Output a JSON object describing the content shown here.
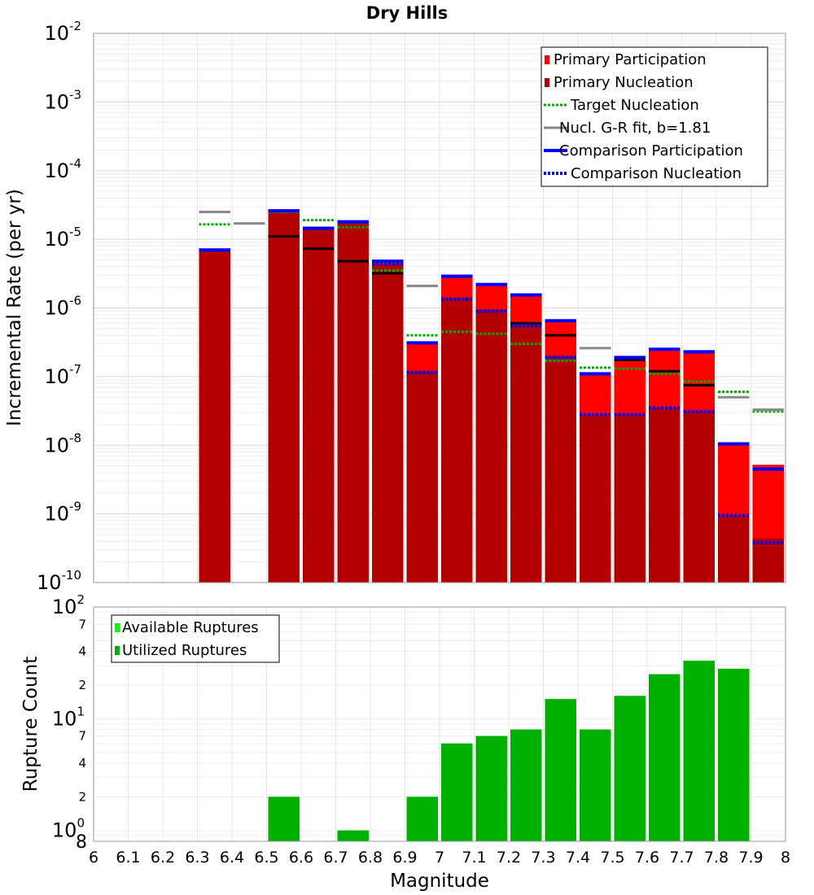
{
  "chart_data": [
    {
      "type": "bar",
      "title": "Dry Hills",
      "xlabel": "",
      "ylabel": "Incremental Rate (per yr)",
      "yscale": "log",
      "xlim": [
        6,
        8
      ],
      "ylim": [
        1e-10,
        0.01
      ],
      "y_tick_exponents": [
        "-10",
        "-9",
        "-8",
        "-7",
        "-6",
        "-5",
        "-4",
        "-3",
        "-2"
      ],
      "grid": true,
      "legend_position": "top-right",
      "bin_centers": [
        6.35,
        6.55,
        6.65,
        6.75,
        6.85,
        6.95,
        7.05,
        7.15,
        7.25,
        7.35,
        7.45,
        7.55,
        7.65,
        7.75,
        7.85,
        7.95
      ],
      "series": [
        {
          "name": "Primary Participation",
          "style": "bar",
          "color": "#ff0000",
          "values": [
            7e-06,
            2.6e-05,
            1.45e-05,
            1.8e-05,
            4.8e-06,
            3.1e-07,
            2.9e-06,
            2.2e-06,
            1.55e-06,
            6.5e-07,
            1.1e-07,
            1.9e-07,
            2.5e-07,
            2.3e-07,
            1.05e-08,
            5.2e-09
          ]
        },
        {
          "name": "Primary Nucleation",
          "style": "bar",
          "color": "#b30000",
          "values": [
            7e-06,
            2.6e-05,
            1.45e-05,
            1.8e-05,
            4.4e-06,
            1.2e-07,
            1.4e-06,
            9.5e-07,
            6e-07,
            2e-07,
            2.8e-08,
            2.8e-08,
            3.5e-08,
            3.1e-08,
            9.5e-10,
            4.4e-10
          ]
        },
        {
          "name": "Target Nucleation",
          "style": "dotted",
          "color": "#00b000",
          "x": [
            6.35,
            6.55,
            6.65,
            6.75,
            6.85,
            6.95,
            7.05,
            7.15,
            7.25,
            7.35,
            7.45,
            7.55,
            7.65,
            7.75,
            7.85,
            7.95
          ],
          "values": [
            1.65e-05,
            2.5e-05,
            1.9e-05,
            1.5e-05,
            3.5e-06,
            4e-07,
            4.5e-07,
            4.2e-07,
            3e-07,
            1.7e-07,
            1.35e-07,
            1.3e-07,
            1.1e-07,
            8.5e-08,
            6e-08,
            3.1e-08
          ]
        },
        {
          "name": "Nucl. G-R fit, b=1.81",
          "style": "line",
          "color": "#888888",
          "x": [
            6.35,
            6.45,
            6.95,
            7.45,
            7.85,
            7.95
          ],
          "values": [
            2.5e-05,
            1.7e-05,
            2.1e-06,
            2.6e-07,
            5e-08,
            3.3e-08
          ]
        },
        {
          "name": "",
          "style": "line",
          "color": "#000000",
          "x": [
            6.55,
            6.65,
            6.75,
            6.85,
            7.25,
            7.35,
            7.55,
            7.65,
            7.75
          ],
          "values": [
            1.1e-05,
            7.3e-06,
            4.8e-06,
            3.2e-06,
            6e-07,
            4e-07,
            1.75e-07,
            1.2e-07,
            7.5e-08
          ]
        },
        {
          "name": "Comparison Participation",
          "style": "line",
          "color": "#0000ff",
          "x": [
            6.35,
            6.55,
            6.65,
            6.75,
            6.85,
            6.95,
            7.05,
            7.15,
            7.25,
            7.35,
            7.45,
            7.55,
            7.65,
            7.75,
            7.85,
            7.95
          ],
          "values": [
            7e-06,
            2.6e-05,
            1.45e-05,
            1.8e-05,
            4.8e-06,
            3.1e-07,
            2.9e-06,
            2.2e-06,
            1.55e-06,
            6.5e-07,
            1.1e-07,
            1.9e-07,
            2.5e-07,
            2.3e-07,
            1.05e-08,
            4.5e-09
          ]
        },
        {
          "name": "Comparison Nucleation",
          "style": "dotted",
          "color": "#0000ff",
          "x": [
            6.35,
            6.55,
            6.65,
            6.75,
            6.85,
            6.95,
            7.05,
            7.15,
            7.25,
            7.35,
            7.45,
            7.55,
            7.65,
            7.75,
            7.85,
            7.95
          ],
          "values": [
            7e-06,
            2.6e-05,
            1.45e-05,
            1.8e-05,
            4.4e-06,
            1.15e-07,
            1.35e-06,
            9e-07,
            5.5e-07,
            1.9e-07,
            2.8e-08,
            2.8e-08,
            3.5e-08,
            3.1e-08,
            9.5e-10,
            3.8e-10
          ]
        }
      ],
      "legend": [
        "Primary Participation",
        "Primary Nucleation",
        "Target Nucleation",
        "Nucl. G-R fit, b=1.81",
        "Comparison Participation",
        "Comparison Nucleation"
      ]
    },
    {
      "type": "bar",
      "title": "",
      "xlabel": "Magnitude",
      "ylabel": "Rupture Count",
      "yscale": "log",
      "xlim": [
        6,
        8
      ],
      "ylim": [
        0.8,
        100
      ],
      "x_ticks": [
        "6",
        "6.1",
        "6.2",
        "6.3",
        "6.4",
        "6.5",
        "6.6",
        "6.7",
        "6.8",
        "6.9",
        "7",
        "7.1",
        "7.2",
        "7.3",
        "7.4",
        "7.5",
        "7.6",
        "7.7",
        "7.8",
        "7.9",
        "8"
      ],
      "y_major_ticks": [
        {
          "value": 1,
          "base": "10",
          "exp": "0"
        },
        {
          "value": 10,
          "base": "10",
          "exp": "1"
        },
        {
          "value": 100,
          "base": "10",
          "exp": "2"
        }
      ],
      "y_minor_labels": [
        {
          "value": 0.8,
          "label": "8"
        },
        {
          "value": 2,
          "label": "2"
        },
        {
          "value": 4,
          "label": "4"
        },
        {
          "value": 7,
          "label": "7"
        },
        {
          "value": 20,
          "label": "2"
        },
        {
          "value": 40,
          "label": "4"
        },
        {
          "value": 70,
          "label": "7"
        }
      ],
      "grid": true,
      "legend_position": "top-left",
      "bin_centers": [
        6.55,
        6.75,
        6.95,
        7.05,
        7.15,
        7.25,
        7.35,
        7.45,
        7.55,
        7.65,
        7.75,
        7.85
      ],
      "series": [
        {
          "name": "Available Ruptures",
          "color": "#00ff00",
          "values": [
            2,
            1,
            2,
            6,
            7,
            8,
            15,
            8,
            16,
            25,
            33,
            28
          ]
        },
        {
          "name": "Utilized Ruptures",
          "color": "#00b000",
          "values": [
            2,
            1,
            2,
            6,
            7,
            8,
            15,
            8,
            16,
            25,
            33,
            28
          ]
        }
      ],
      "legend": [
        "Available Ruptures",
        "Utilized Ruptures"
      ]
    }
  ]
}
